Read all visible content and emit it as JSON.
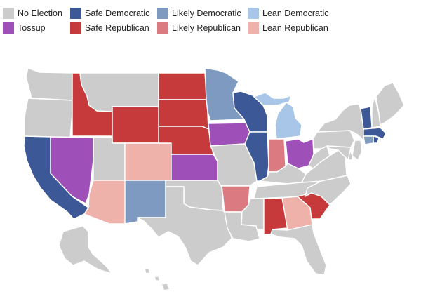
{
  "legend": {
    "no_election": {
      "label": "No Election",
      "color": "#cccccc"
    },
    "safe_democratic": {
      "label": "Safe Democratic",
      "color": "#3c5896"
    },
    "likely_democratic": {
      "label": "Likely Democratic",
      "color": "#7f9ac0"
    },
    "lean_democratic": {
      "label": "Lean Democratic",
      "color": "#a8c6e8"
    },
    "tossup": {
      "label": "Tossup",
      "color": "#9f4fb8"
    },
    "safe_republican": {
      "label": "Safe Republican",
      "color": "#c73a3c"
    },
    "likely_republican": {
      "label": "Likely Republican",
      "color": "#dc7a82"
    },
    "lean_republican": {
      "label": "Lean Republican",
      "color": "#efb2aa"
    }
  },
  "states": {
    "WA": "no_election",
    "OR": "no_election",
    "CA": "safe_democratic",
    "NV": "tossup",
    "ID": "safe_republican",
    "MT": "no_election",
    "WY": "safe_republican",
    "UT": "no_election",
    "AZ": "lean_republican",
    "CO": "lean_republican",
    "NM": "likely_democratic",
    "ND": "safe_republican",
    "SD": "safe_republican",
    "NE": "safe_republican",
    "KS": "tossup",
    "OK": "no_election",
    "TX": "no_election",
    "MN": "likely_democratic",
    "IA": "tossup",
    "MO": "no_election",
    "AR": "likely_republican",
    "LA": "no_election",
    "WI": "safe_democratic",
    "IL": "safe_democratic",
    "MI": "lean_democratic",
    "IN": "likely_republican",
    "OH": "tossup",
    "KY": "no_election",
    "TN": "no_election",
    "MS": "no_election",
    "AL": "safe_republican",
    "GA": "lean_republican",
    "FL": "no_election",
    "SC": "safe_republican",
    "NC": "no_election",
    "VA": "no_election",
    "WV": "no_election",
    "PA": "no_election",
    "NY": "no_election",
    "VT": "safe_democratic",
    "NH": "no_election",
    "ME": "no_election",
    "MA": "safe_democratic",
    "RI": "safe_democratic",
    "CT": "likely_democratic",
    "NJ": "no_election",
    "DE": "no_election",
    "MD": "no_election",
    "AK": "no_election",
    "HI": "no_election"
  }
}
